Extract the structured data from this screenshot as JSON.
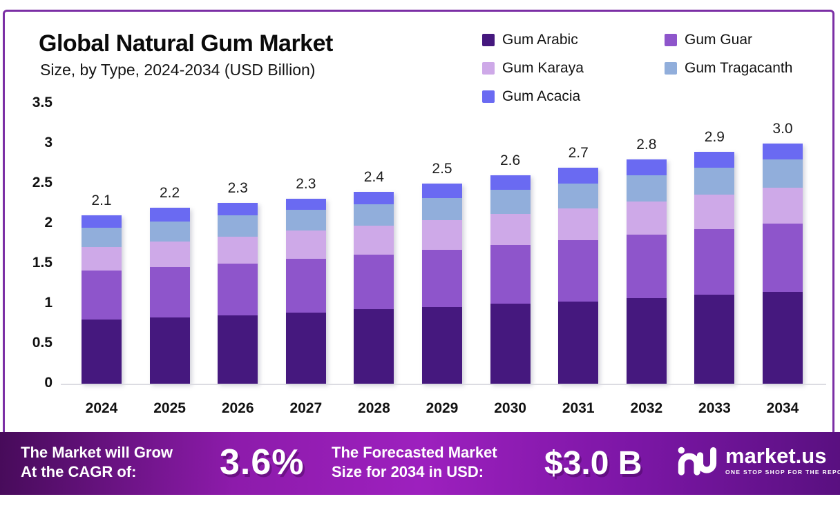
{
  "title": "Global Natural Gum Market",
  "subtitle": "Size, by Type, 2024-2034 (USD Billion)",
  "chart_data": {
    "type": "bar",
    "stacked": true,
    "title": "Global Natural Gum Market Size, by Type, 2024-2034 (USD Billion)",
    "categories": [
      "2024",
      "2025",
      "2026",
      "2027",
      "2028",
      "2029",
      "2030",
      "2031",
      "2032",
      "2033",
      "2034"
    ],
    "series": [
      {
        "name": "Gum Arabic",
        "color": "#45187E",
        "values": [
          0.8,
          0.83,
          0.85,
          0.89,
          0.93,
          0.96,
          1.0,
          1.03,
          1.07,
          1.11,
          1.15
        ]
      },
      {
        "name": "Gum Guar",
        "color": "#8E55CB",
        "values": [
          0.61,
          0.63,
          0.65,
          0.67,
          0.68,
          0.71,
          0.73,
          0.76,
          0.79,
          0.82,
          0.85
        ]
      },
      {
        "name": "Gum Karaya",
        "color": "#CEA9E8",
        "values": [
          0.3,
          0.32,
          0.34,
          0.35,
          0.36,
          0.37,
          0.39,
          0.4,
          0.42,
          0.43,
          0.45
        ]
      },
      {
        "name": "Gum Tragacanth",
        "color": "#91AEDB",
        "values": [
          0.24,
          0.25,
          0.26,
          0.26,
          0.27,
          0.28,
          0.3,
          0.31,
          0.32,
          0.34,
          0.35
        ]
      },
      {
        "name": "Gum Acacia",
        "color": "#6A6AF2",
        "values": [
          0.15,
          0.17,
          0.16,
          0.14,
          0.16,
          0.18,
          0.18,
          0.2,
          0.2,
          0.2,
          0.2
        ]
      }
    ],
    "total_labels": [
      "2.1",
      "2.2",
      "2.3",
      "2.3",
      "2.4",
      "2.5",
      "2.6",
      "2.7",
      "2.8",
      "2.9",
      "3.0"
    ],
    "xlabel": "",
    "ylabel": "",
    "ylim": [
      0,
      3.5
    ],
    "ytick_labels": [
      "0",
      "0.5",
      "1",
      "1.5",
      "2",
      "2.5",
      "3",
      "3.5"
    ],
    "yticks": [
      0,
      0.5,
      1,
      1.5,
      2,
      2.5,
      3,
      3.5
    ],
    "grid": false,
    "legend_position": "top-right"
  },
  "banner": {
    "cagr_label_line1": "The Market will Grow",
    "cagr_label_line2": "At the CAGR of:",
    "cagr_value": "3.6%",
    "forecast_label_line1": "The Forecasted Market",
    "forecast_label_line2": "Size for 2034 in USD:",
    "forecast_value": "$3.0 B",
    "logo_text": "market.us",
    "logo_tagline": "ONE STOP SHOP FOR THE REPORTS"
  },
  "colors": {
    "card_border": "#7B2FA5",
    "banner_gradient_left": "#470B5A",
    "banner_gradient_mid": "#9D20BE",
    "banner_gradient_right": "#591080",
    "axis_line": "#DCDCE2"
  }
}
